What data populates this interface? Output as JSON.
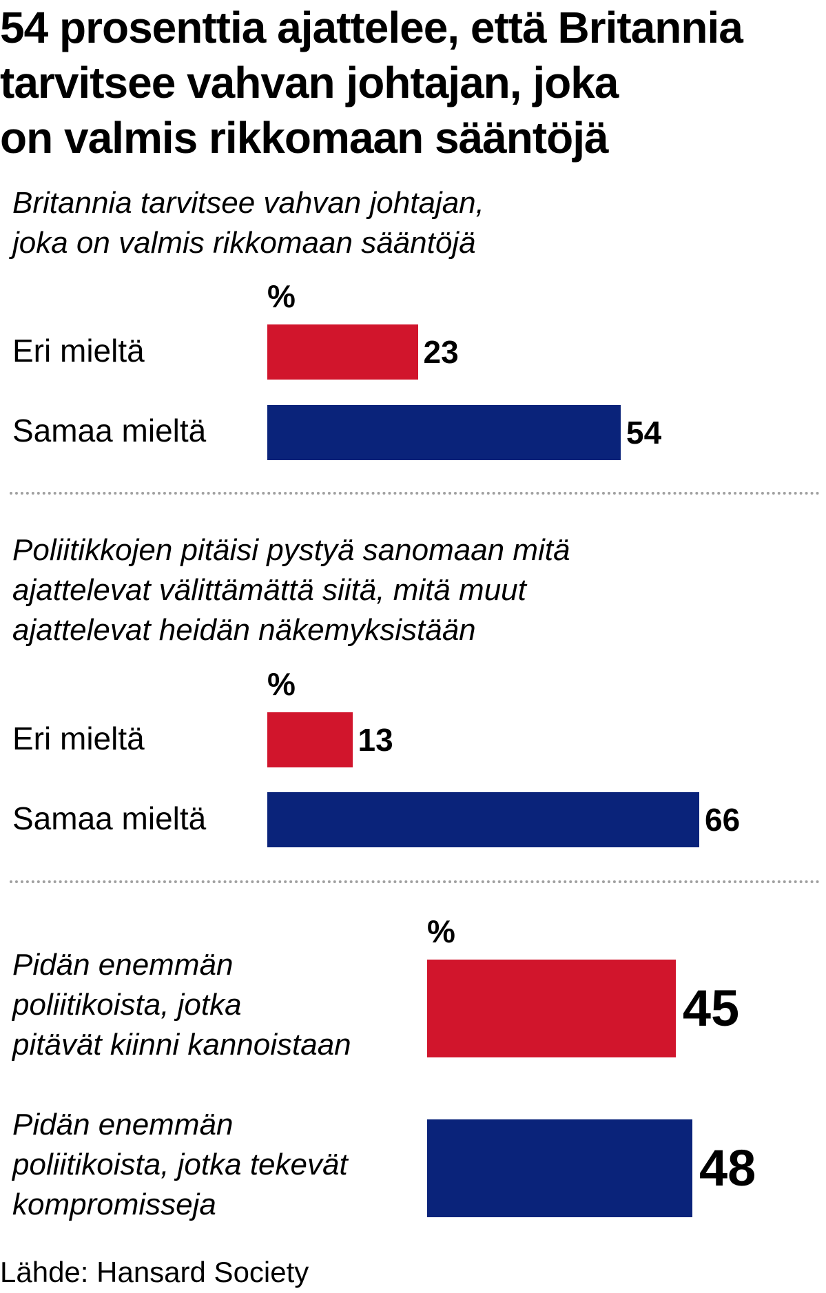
{
  "title": "54 prosenttia ajattelee, että Britannia\ntarvitsee vahvan johtajan, joka\non valmis rikkomaan sääntöjä",
  "colors": {
    "disagree": "#d1152c",
    "agree": "#0a237a",
    "divider": "#a0a0a0"
  },
  "chart_data": [
    {
      "type": "bar",
      "orientation": "horizontal",
      "title": "Britannia tarvitsee vahvan johtajan,\njoka on valmis rikkomaan sääntöjä",
      "unit": "%",
      "categories": [
        "Eri mieltä",
        "Samaa mieltä"
      ],
      "values": [
        23,
        54
      ],
      "value_labels": [
        "23",
        "54"
      ]
    },
    {
      "type": "bar",
      "orientation": "horizontal",
      "title": "Poliitikkojen pitäisi pystyä sanomaan mitä\najattelevat välittämättä siitä, mitä muut\najattelevat heidän näkemyksistään",
      "unit": "%",
      "categories": [
        "Eri mieltä",
        "Samaa mieltä"
      ],
      "values": [
        13,
        66
      ],
      "value_labels": [
        "13",
        "66"
      ]
    },
    {
      "type": "bar",
      "orientation": "horizontal",
      "title": "",
      "unit": "%",
      "categories": [
        "Pidän enemmän\npoliitikoista, jotka\npitävät kiinni kannoistaan",
        "Pidän enemmän\npoliitikoista, jotka tekevät\nkompromisseja"
      ],
      "values": [
        45,
        48
      ],
      "value_labels": [
        "45",
        "48"
      ]
    }
  ],
  "source": "Lähde: Hansard Society"
}
